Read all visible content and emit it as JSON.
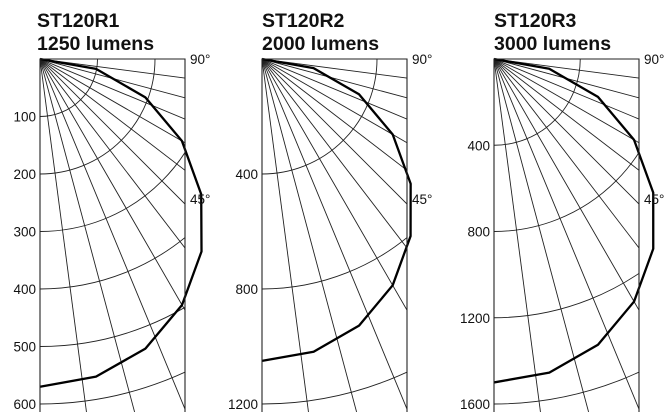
{
  "chart_data": [
    {
      "type": "polar",
      "title_line1": "ST120R1",
      "title_line2": "1250 lumens",
      "radial_ticks": [
        100,
        200,
        300,
        400,
        500,
        600
      ],
      "rmax": 600,
      "angle_labels": [
        "90°",
        "45°"
      ],
      "grid_angle_step_deg": 7.5,
      "series": [
        {
          "angle_deg": [
            0,
            10,
            20,
            30,
            40,
            50,
            60,
            70,
            80,
            90
          ],
          "value": [
            570,
            561,
            536,
            494,
            437,
            366,
            285,
            195,
            99,
            0
          ]
        }
      ]
    },
    {
      "type": "polar",
      "title_line1": "ST120R2",
      "title_line2": "2000 lumens",
      "radial_ticks": [
        400,
        800,
        1200
      ],
      "rmax": 1200,
      "angle_labels": [
        "90°",
        "45°"
      ],
      "grid_angle_step_deg": 7.5,
      "series": [
        {
          "angle_deg": [
            0,
            10,
            20,
            30,
            40,
            50,
            60,
            70,
            80,
            90
          ],
          "value": [
            1050,
            1034,
            987,
            909,
            804,
            675,
            525,
            359,
            182,
            0
          ]
        }
      ]
    },
    {
      "type": "polar",
      "title_line1": "ST120R3",
      "title_line2": "3000 lumens",
      "radial_ticks": [
        400,
        800,
        1200,
        1600
      ],
      "rmax": 1600,
      "angle_labels": [
        "90°",
        "45°"
      ],
      "grid_angle_step_deg": 7.5,
      "series": [
        {
          "angle_deg": [
            0,
            10,
            20,
            30,
            40,
            50,
            60,
            70,
            80,
            90
          ],
          "value": [
            1500,
            1477,
            1410,
            1299,
            1149,
            964,
            750,
            513,
            260,
            0
          ]
        }
      ]
    }
  ]
}
